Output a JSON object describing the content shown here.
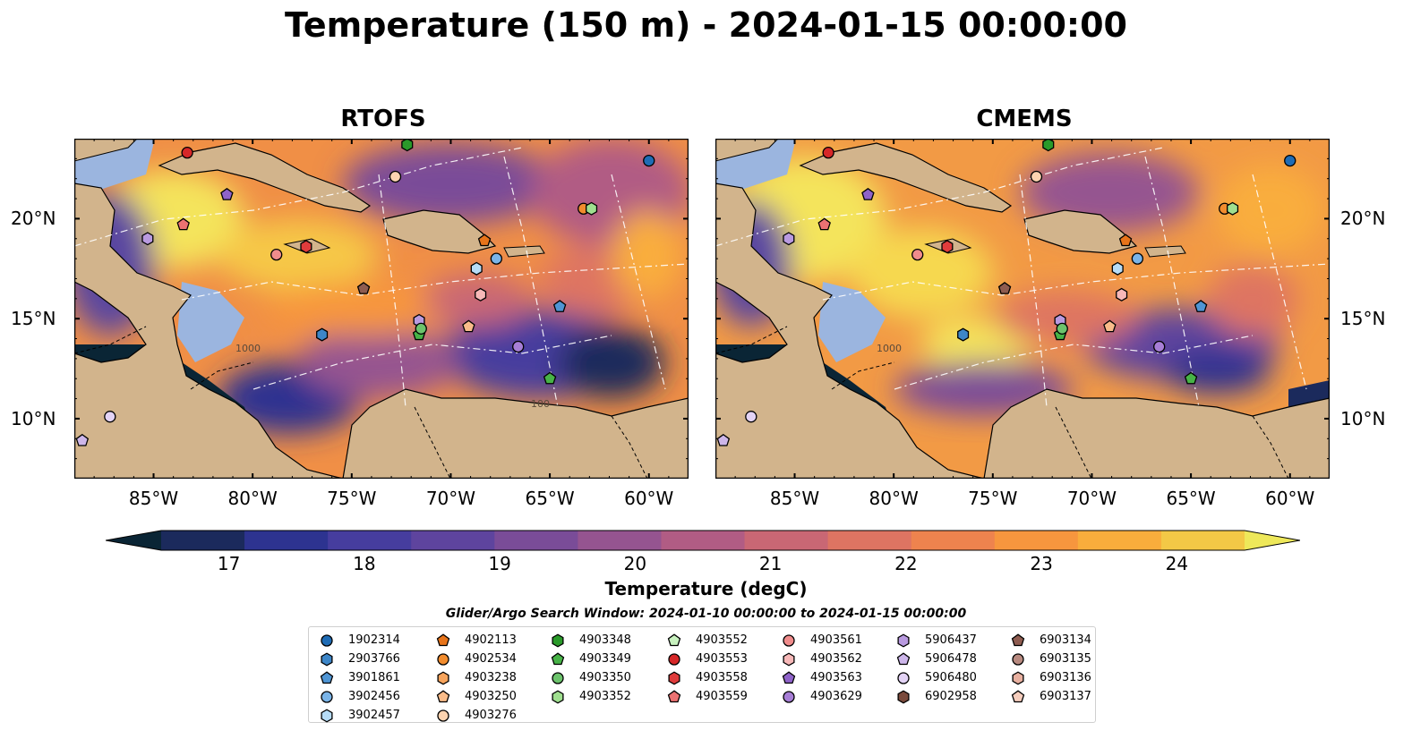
{
  "title": "Temperature (150 m) - 2024-01-15 00:00:00",
  "panels": [
    {
      "title": "RTOFS"
    },
    {
      "title": "CMEMS"
    }
  ],
  "lon_labels": [
    "85°W",
    "80°W",
    "75°W",
    "70°W",
    "65°W",
    "60°W"
  ],
  "lat_labels": [
    "20°N",
    "15°N",
    "10°N"
  ],
  "map_extent": {
    "lon": [
      -89,
      -58
    ],
    "lat": [
      7,
      24
    ]
  },
  "contour_labels": [
    "1000",
    "100"
  ],
  "colorbar": {
    "label": "Temperature (degC)",
    "ticks": [
      "17",
      "18",
      "19",
      "20",
      "21",
      "22",
      "23",
      "24"
    ],
    "range": [
      16.75,
      24.5
    ],
    "colors": [
      "#0a2535",
      "#1b2a5c",
      "#2d3390",
      "#463d9e",
      "#5e449e",
      "#7a4c98",
      "#955490",
      "#b15c84",
      "#c96774",
      "#de7462",
      "#ee834e",
      "#f7963e",
      "#f9ad3c",
      "#f3c846",
      "#eee85a"
    ]
  },
  "colors": {
    "land": "#d2b48c",
    "shelf": "#9bb5df",
    "deep_cold": "#0a2535"
  },
  "legend": {
    "title": "Glider/Argo Search Window: 2024-01-10 00:00:00 to 2024-01-15 00:00:00",
    "columns": [
      [
        {
          "id": "1902314",
          "shape": "circle",
          "color": "#1f6cb5"
        },
        {
          "id": "2903766",
          "shape": "hexagon",
          "color": "#3d86c8"
        },
        {
          "id": "3901861",
          "shape": "pentagon",
          "color": "#4f95d4"
        },
        {
          "id": "3902456",
          "shape": "circle",
          "color": "#7ab4e8"
        },
        {
          "id": "3902457",
          "shape": "hexagon",
          "color": "#b6dcf7"
        }
      ],
      [
        {
          "id": "4902113",
          "shape": "pentagon",
          "color": "#e8741a"
        },
        {
          "id": "4902534",
          "shape": "circle",
          "color": "#f28c2e"
        },
        {
          "id": "4903238",
          "shape": "hexagon",
          "color": "#f7a45c"
        },
        {
          "id": "4903250",
          "shape": "pentagon",
          "color": "#f9bc8a"
        },
        {
          "id": "4903276",
          "shape": "circle",
          "color": "#fcd3b0"
        }
      ],
      [
        {
          "id": "4903348",
          "shape": "hexagon",
          "color": "#2a9a2a"
        },
        {
          "id": "4903349",
          "shape": "pentagon",
          "color": "#47b347"
        },
        {
          "id": "4903350",
          "shape": "circle",
          "color": "#6cc36c"
        },
        {
          "id": "4903352",
          "shape": "hexagon",
          "color": "#9fdf8f"
        }
      ],
      [
        {
          "id": "4903552",
          "shape": "pentagon",
          "color": "#c8f2bf"
        },
        {
          "id": "4903553",
          "shape": "circle",
          "color": "#d62728"
        },
        {
          "id": "4903558",
          "shape": "hexagon",
          "color": "#e03c3c"
        },
        {
          "id": "4903559",
          "shape": "pentagon",
          "color": "#ec7272"
        }
      ],
      [
        {
          "id": "4903561",
          "shape": "circle",
          "color": "#f08c8c"
        },
        {
          "id": "4903562",
          "shape": "hexagon",
          "color": "#f7b8b8"
        },
        {
          "id": "4903563",
          "shape": "pentagon",
          "color": "#8f63c9"
        },
        {
          "id": "4903629",
          "shape": "circle",
          "color": "#a77ed6"
        }
      ],
      [
        {
          "id": "5906437",
          "shape": "hexagon",
          "color": "#b99ae0"
        },
        {
          "id": "5906478",
          "shape": "pentagon",
          "color": "#cdb6ea"
        },
        {
          "id": "5906480",
          "shape": "circle",
          "color": "#e3d3f5"
        },
        {
          "id": "6902958",
          "shape": "hexagon",
          "color": "#7a4a3c"
        }
      ],
      [
        {
          "id": "6903134",
          "shape": "pentagon",
          "color": "#8e5c50"
        },
        {
          "id": "6903135",
          "shape": "circle",
          "color": "#b88a80"
        },
        {
          "id": "6903136",
          "shape": "hexagon",
          "color": "#e8b0a0"
        },
        {
          "id": "6903137",
          "shape": "pentagon",
          "color": "#f5cdbd"
        }
      ]
    ]
  },
  "floats": [
    {
      "id": "1902314",
      "lon": -60.0,
      "lat": 22.9
    },
    {
      "id": "4903553",
      "lon": -83.3,
      "lat": 23.3
    },
    {
      "id": "4903348",
      "lon": -72.2,
      "lat": 23.7
    },
    {
      "id": "4903276",
      "lon": -72.8,
      "lat": 22.1
    },
    {
      "id": "4903563",
      "lon": -81.3,
      "lat": 21.2
    },
    {
      "id": "4903559",
      "lon": -83.5,
      "lat": 19.7
    },
    {
      "id": "5906437",
      "lon": -85.3,
      "lat": 19.0
    },
    {
      "id": "4903561",
      "lon": -78.8,
      "lat": 18.2
    },
    {
      "id": "4903558",
      "lon": -77.3,
      "lat": 18.6
    },
    {
      "id": "4902534",
      "lon": -63.3,
      "lat": 20.5
    },
    {
      "id": "4903352",
      "lon": -62.9,
      "lat": 20.5
    },
    {
      "id": "4902113",
      "lon": -68.3,
      "lat": 18.9
    },
    {
      "id": "3902456",
      "lon": -67.7,
      "lat": 18.0
    },
    {
      "id": "3902457",
      "lon": -68.7,
      "lat": 17.5
    },
    {
      "id": "4903562",
      "lon": -68.5,
      "lat": 16.2
    },
    {
      "id": "6903134",
      "lon": -74.4,
      "lat": 16.5
    },
    {
      "id": "3901861",
      "lon": -64.5,
      "lat": 15.6
    },
    {
      "id": "5906437",
      "lon": -71.6,
      "lat": 14.9
    },
    {
      "id": "4903349",
      "lon": -71.6,
      "lat": 14.2
    },
    {
      "id": "4903350",
      "lon": -71.5,
      "lat": 14.5
    },
    {
      "id": "4903250",
      "lon": -69.1,
      "lat": 14.6
    },
    {
      "id": "2903766",
      "lon": -76.5,
      "lat": 14.2
    },
    {
      "id": "4903629",
      "lon": -66.6,
      "lat": 13.6
    },
    {
      "id": "4903349",
      "lon": -65.0,
      "lat": 12.0
    },
    {
      "id": "5906480",
      "lon": -87.2,
      "lat": 10.1
    },
    {
      "id": "5906478",
      "lon": -88.6,
      "lat": 8.9
    }
  ]
}
